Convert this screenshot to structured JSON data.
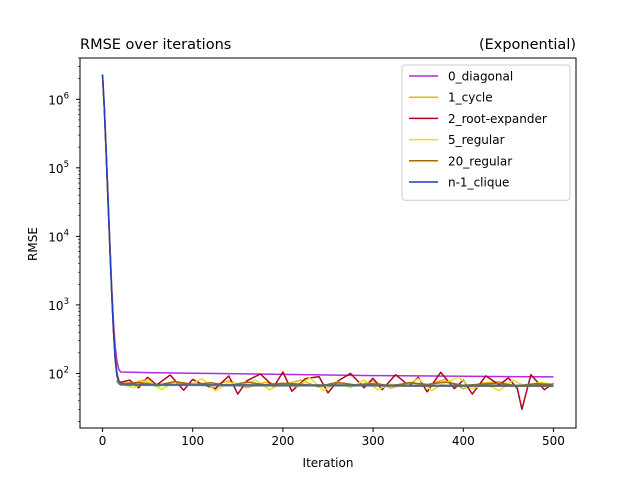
{
  "chart_data": {
    "type": "line",
    "title_left": "RMSE over iterations",
    "title_right": "(Exponential)",
    "xlabel": "Iteration",
    "ylabel": "RMSE",
    "xlim": [
      -25,
      525
    ],
    "ylim": [
      16,
      4000000
    ],
    "yscale": "log",
    "x_ticks": [
      0,
      100,
      200,
      300,
      400,
      500
    ],
    "y_ticks": [
      {
        "value": 100,
        "base": "10",
        "exp": "2"
      },
      {
        "value": 1000,
        "base": "10",
        "exp": "3"
      },
      {
        "value": 10000,
        "base": "10",
        "exp": "4"
      },
      {
        "value": 100000,
        "base": "10",
        "exp": "5"
      },
      {
        "value": 1000000,
        "base": "10",
        "exp": "6"
      }
    ],
    "legend_position": "upper right",
    "grid": false,
    "series": [
      {
        "name": "0_diagonal",
        "color": "#b22cde",
        "x": [
          0,
          2,
          4,
          6,
          8,
          10,
          12,
          14,
          16,
          18,
          20,
          50,
          100,
          150,
          200,
          250,
          300,
          350,
          400,
          450,
          500
        ],
        "y": [
          2300000,
          800000,
          180000,
          40000,
          8500,
          2000,
          600,
          250,
          150,
          115,
          105,
          103,
          101,
          99,
          97,
          95,
          93,
          92,
          91,
          90,
          89
        ]
      },
      {
        "name": "1_cycle",
        "color": "#f0b400",
        "x": [
          0,
          2,
          4,
          6,
          8,
          10,
          12,
          14,
          16,
          18,
          20,
          30,
          45,
          60,
          80,
          100,
          120,
          140,
          160,
          180,
          200,
          220,
          240,
          260,
          280,
          300,
          320,
          340,
          360,
          380,
          400,
          420,
          440,
          460,
          480,
          500
        ],
        "y": [
          2300000,
          750000,
          160000,
          35000,
          7500,
          1700,
          450,
          170,
          100,
          80,
          72,
          68,
          80,
          64,
          76,
          70,
          66,
          78,
          62,
          74,
          68,
          80,
          63,
          72,
          66,
          77,
          61,
          74,
          68,
          82,
          60,
          72,
          76,
          64,
          70,
          68
        ]
      },
      {
        "name": "2_root-expander",
        "color": "#b5001f",
        "x": [
          0,
          2,
          4,
          6,
          8,
          10,
          12,
          14,
          16,
          18,
          20,
          30,
          40,
          50,
          60,
          75,
          90,
          100,
          110,
          125,
          140,
          150,
          160,
          175,
          190,
          200,
          210,
          225,
          240,
          250,
          260,
          275,
          290,
          300,
          310,
          325,
          340,
          350,
          360,
          375,
          390,
          400,
          410,
          425,
          440,
          450,
          460,
          465,
          475,
          490,
          500
        ],
        "y": [
          2300000,
          760000,
          165000,
          36000,
          7800,
          1750,
          460,
          175,
          100,
          78,
          74,
          80,
          62,
          88,
          68,
          95,
          57,
          82,
          70,
          60,
          92,
          50,
          78,
          98,
          64,
          105,
          55,
          84,
          90,
          52,
          76,
          100,
          62,
          85,
          58,
          96,
          66,
          88,
          54,
          104,
          60,
          80,
          50,
          92,
          68,
          86,
          60,
          30,
          96,
          58,
          72
        ]
      },
      {
        "name": "5_regular",
        "color": "#e3e21f",
        "x": [
          0,
          2,
          4,
          6,
          8,
          10,
          12,
          14,
          16,
          18,
          20,
          35,
          50,
          65,
          80,
          95,
          110,
          125,
          140,
          155,
          170,
          185,
          200,
          215,
          230,
          245,
          260,
          275,
          290,
          305,
          320,
          335,
          350,
          365,
          380,
          395,
          410,
          425,
          440,
          455,
          470,
          485,
          500
        ],
        "y": [
          2300000,
          750000,
          160000,
          34000,
          7300,
          1650,
          440,
          165,
          95,
          76,
          70,
          62,
          82,
          58,
          76,
          66,
          84,
          56,
          74,
          68,
          80,
          58,
          72,
          64,
          86,
          56,
          76,
          62,
          80,
          58,
          70,
          66,
          84,
          56,
          74,
          88,
          60,
          70,
          56,
          80,
          64,
          74,
          70
        ]
      },
      {
        "name": "20_regular",
        "color": "#a66a00",
        "x": [
          0,
          2,
          4,
          6,
          8,
          10,
          12,
          14,
          16,
          18,
          20,
          40,
          60,
          80,
          100,
          120,
          140,
          160,
          180,
          200,
          220,
          240,
          260,
          280,
          300,
          320,
          340,
          360,
          380,
          400,
          420,
          440,
          460,
          480,
          500
        ],
        "y": [
          2300000,
          750000,
          160000,
          34000,
          7300,
          1650,
          440,
          165,
          95,
          76,
          71,
          74,
          67,
          76,
          69,
          73,
          66,
          75,
          68,
          72,
          70,
          65,
          74,
          68,
          71,
          66,
          73,
          69,
          75,
          67,
          70,
          72,
          66,
          71,
          69
        ]
      },
      {
        "name": "n-1_clique",
        "color": "#1f3fbf",
        "x": [
          0,
          2,
          4,
          6,
          8,
          10,
          12,
          14,
          16,
          18,
          20,
          50,
          100,
          150,
          200,
          250,
          300,
          350,
          400,
          450,
          500
        ],
        "y": [
          2300000,
          740000,
          158000,
          33000,
          7100,
          1600,
          430,
          160,
          92,
          75,
          70,
          69,
          68,
          68,
          67,
          67,
          67,
          66,
          66,
          66,
          66
        ]
      }
    ],
    "overlay_gray": {
      "color": "#5a6f7a",
      "x": [
        16,
        18,
        20,
        50,
        100,
        150,
        200,
        250,
        300,
        350,
        400,
        450,
        500
      ],
      "y": [
        80,
        72,
        69,
        68,
        68,
        67,
        67,
        67,
        67,
        66,
        66,
        66,
        66
      ]
    }
  }
}
